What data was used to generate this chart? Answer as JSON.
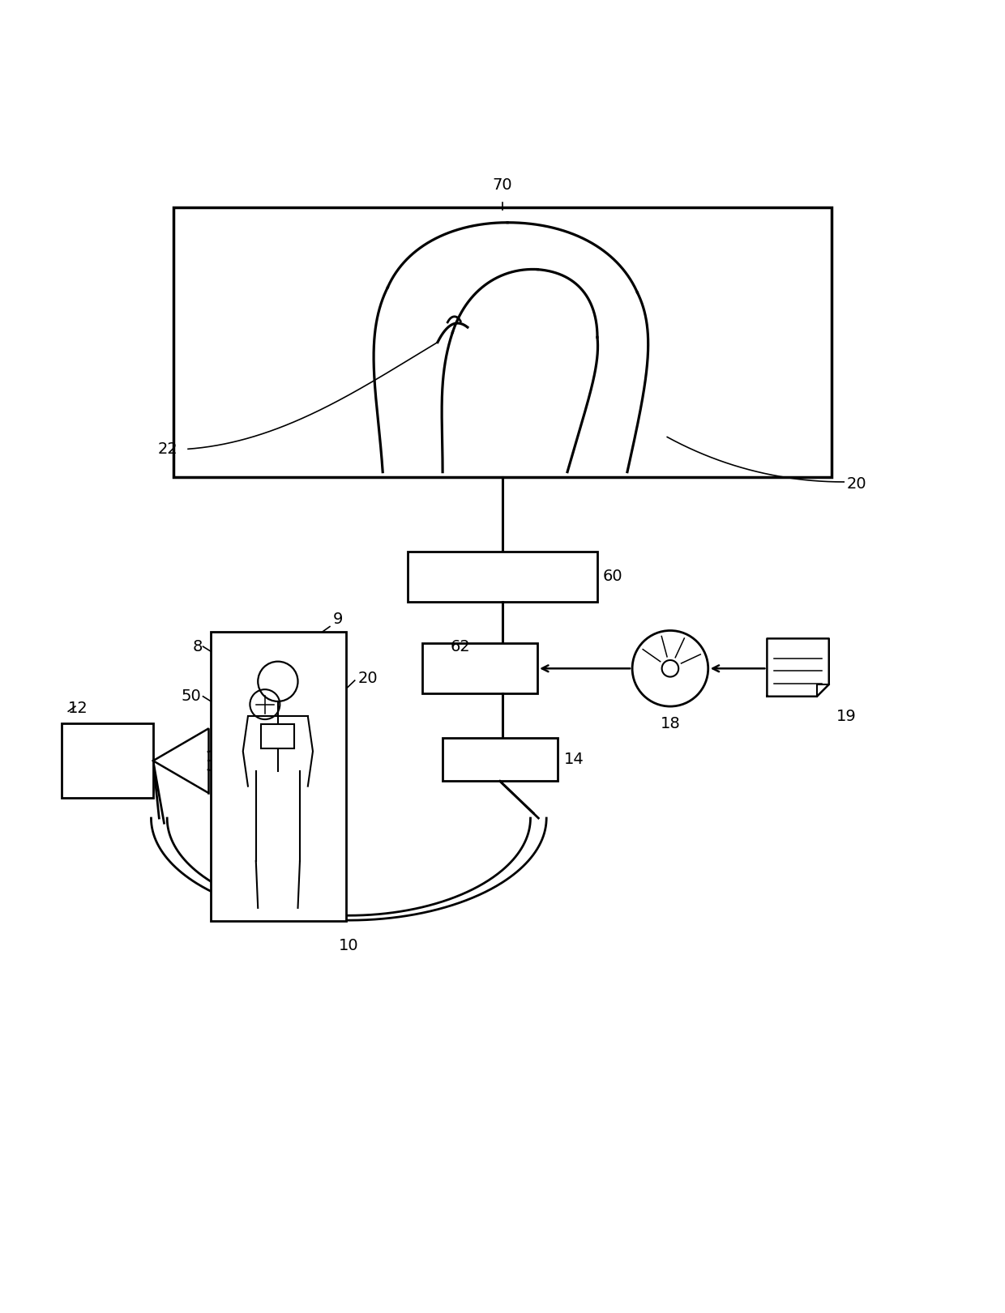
{
  "bg_color": "#ffffff",
  "line_color": "#000000",
  "fig_width": 12.4,
  "fig_height": 16.21
}
